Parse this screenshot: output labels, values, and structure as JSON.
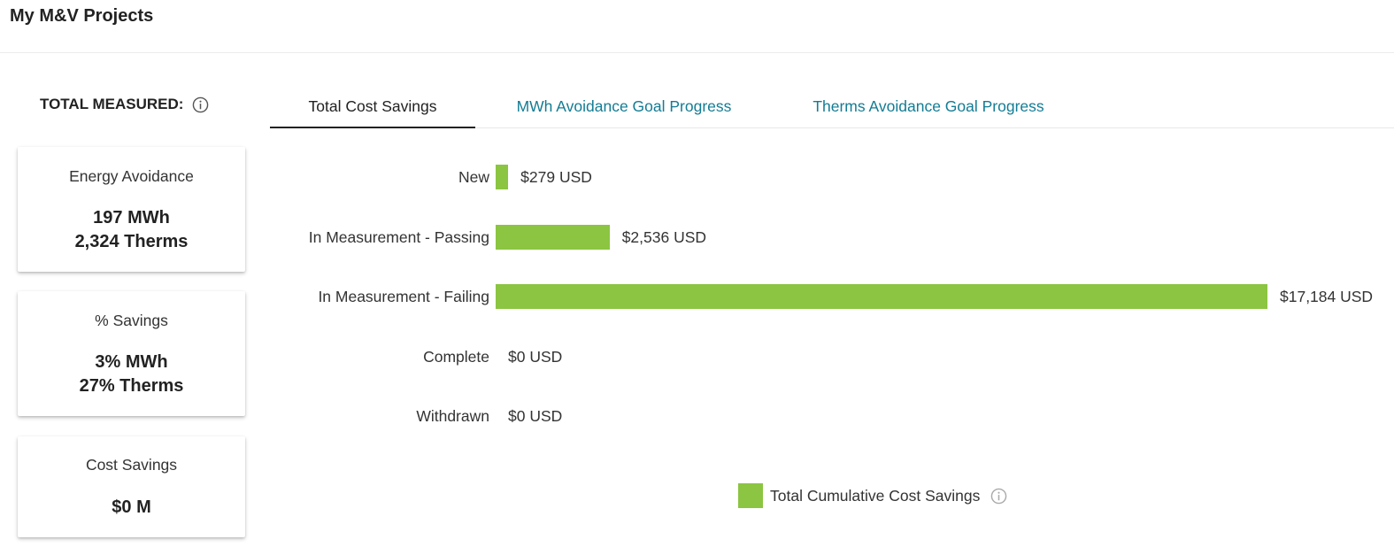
{
  "header": {
    "title": "My M&V Projects"
  },
  "summary": {
    "label": "TOTAL MEASURED:",
    "cards": [
      {
        "title": "Energy Avoidance",
        "lines": [
          "197 MWh",
          "2,324 Therms"
        ]
      },
      {
        "title": "% Savings",
        "lines": [
          "3% MWh",
          "27% Therms"
        ]
      },
      {
        "title": "Cost Savings",
        "lines": [
          "$0 M"
        ]
      }
    ]
  },
  "tabs": [
    {
      "label": "Total Cost Savings",
      "active": true
    },
    {
      "label": "MWh Avoidance Goal Progress",
      "active": false
    },
    {
      "label": "Therms Avoidance Goal Progress",
      "active": false
    }
  ],
  "colors": {
    "bar": "#8bc541",
    "tab_link": "#137c94"
  },
  "chart_data": {
    "type": "bar",
    "orientation": "horizontal",
    "categories": [
      "New",
      "In Measurement - Passing",
      "In Measurement - Failing",
      "Complete",
      "Withdrawn"
    ],
    "values": [
      279,
      2536,
      17184,
      0,
      0
    ],
    "value_labels": [
      "$279 USD",
      "$2,536 USD",
      "$17,184 USD",
      "$0 USD",
      "$0 USD"
    ],
    "series": [
      {
        "name": "Total Cumulative Cost Savings",
        "values": [
          279,
          2536,
          17184,
          0,
          0
        ]
      }
    ],
    "legend_position": "bottom",
    "grid": false
  }
}
